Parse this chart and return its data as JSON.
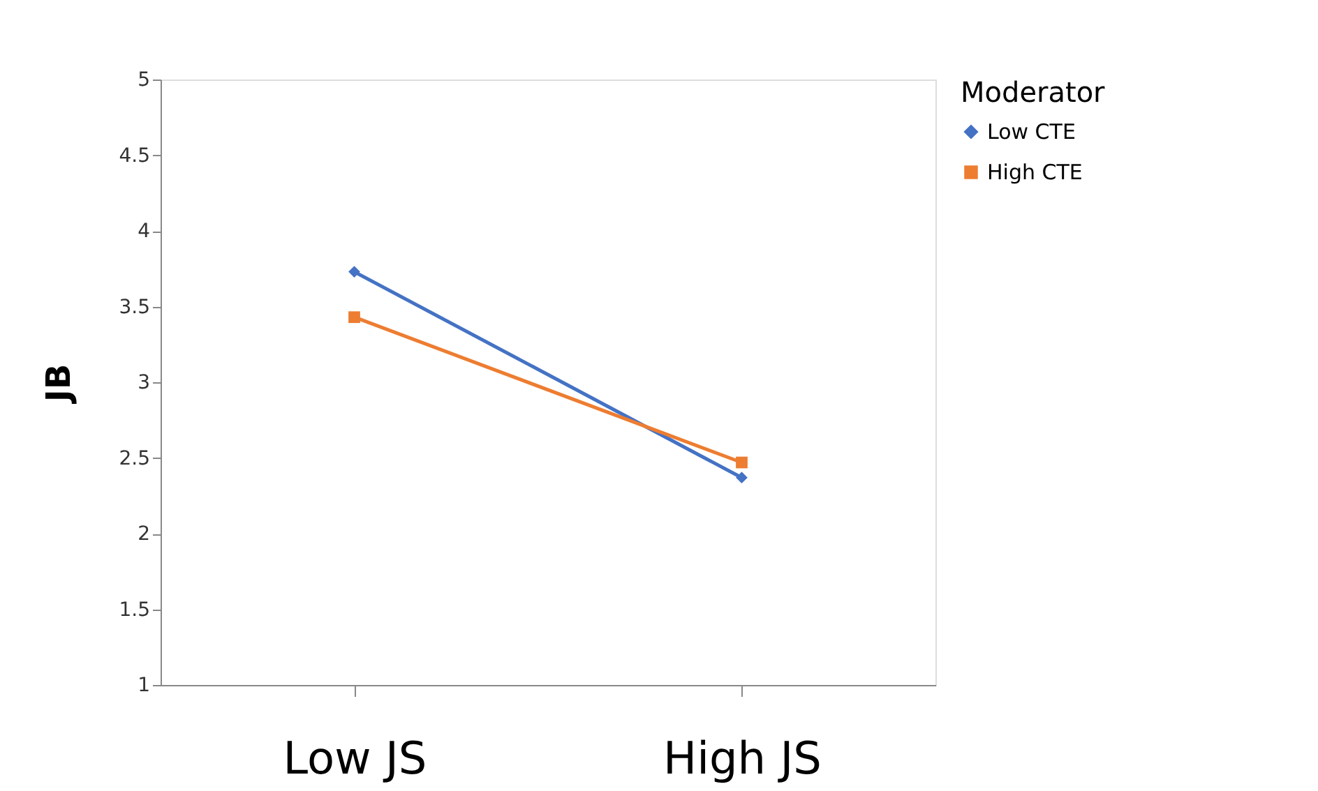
{
  "chart_data": {
    "type": "line",
    "ylabel": "JB",
    "legend_title": "Moderator",
    "legend": "right",
    "grid": false,
    "line_style": "solid",
    "categories": [
      "Low JS",
      "High JS"
    ],
    "ylim": [
      1,
      5
    ],
    "yticks": [
      1,
      1.5,
      2,
      2.5,
      3,
      3.5,
      4,
      4.5,
      5
    ],
    "series": [
      {
        "name": "Low CTE",
        "color": "#4472c4",
        "marker": "diamond",
        "values": [
          3.73,
          2.37
        ]
      },
      {
        "name": "High CTE",
        "color": "#ed7d31",
        "marker": "square",
        "values": [
          3.43,
          2.47
        ]
      }
    ]
  }
}
